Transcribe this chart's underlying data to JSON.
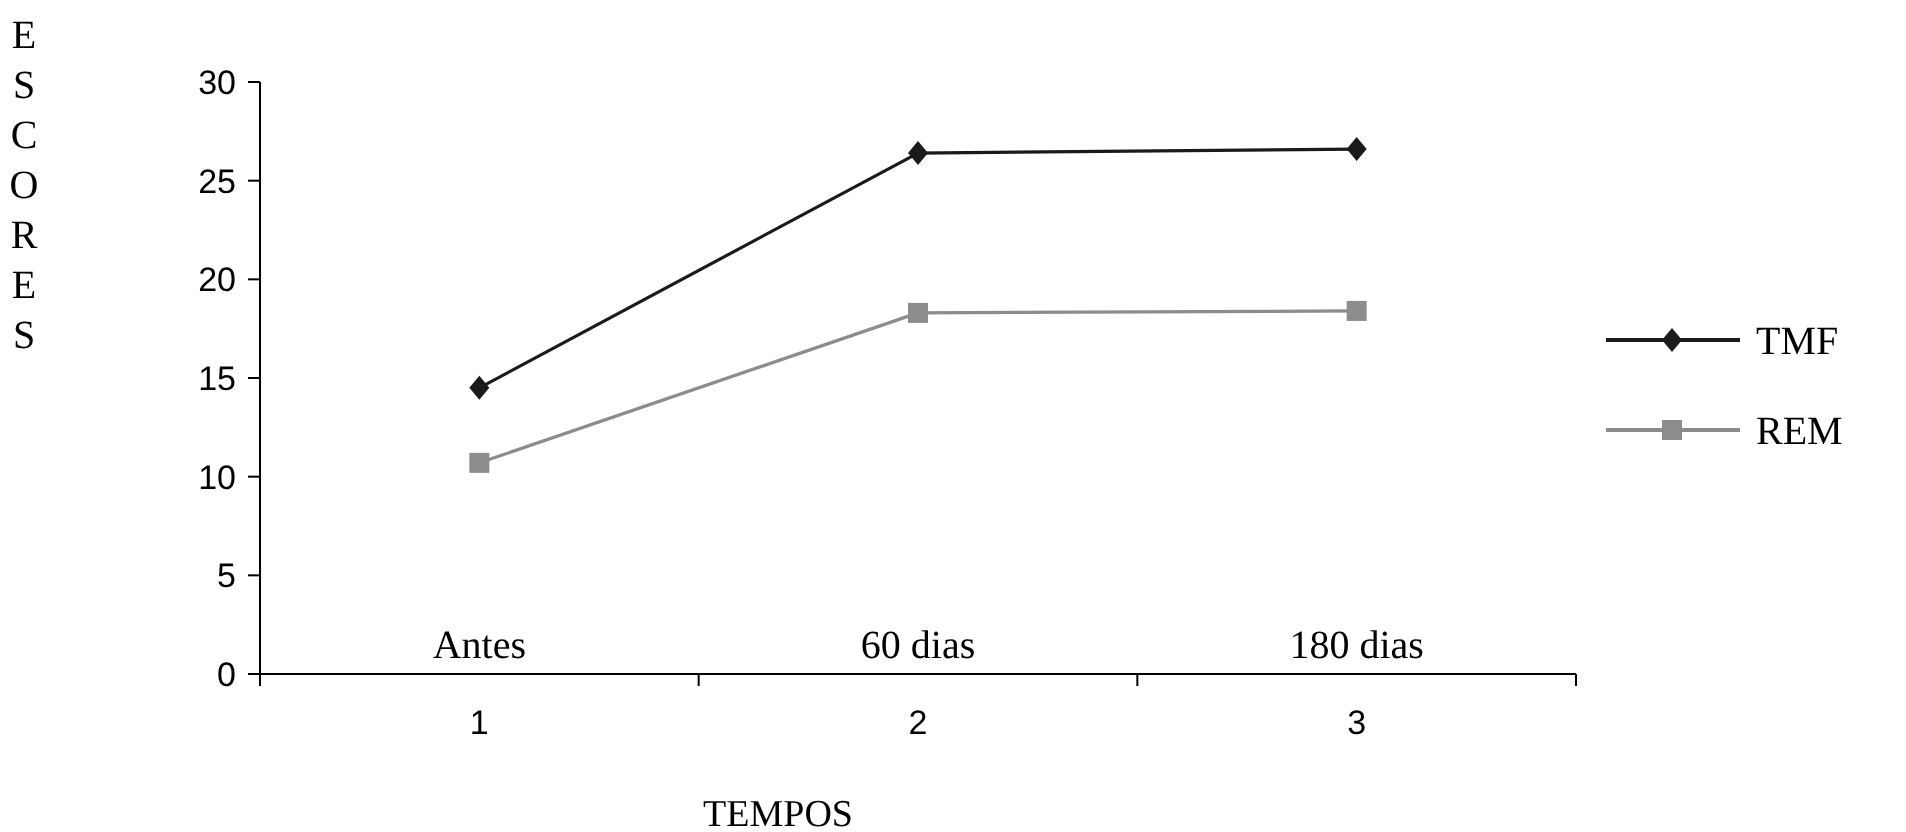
{
  "chart_data": {
    "type": "line",
    "xlabel": "TEMPOS",
    "ylabel": "ESCORES",
    "categories": [
      "1",
      "2",
      "3"
    ],
    "ylim": [
      0,
      30
    ],
    "yticks": [
      0,
      5,
      10,
      15,
      20,
      25,
      30
    ],
    "grid": false,
    "legend": "right",
    "series": [
      {
        "name": "TMF",
        "color": "#1a1a1a",
        "marker": "diamond",
        "values": [
          14.5,
          26.4,
          26.6
        ]
      },
      {
        "name": "REM",
        "color": "#8c8c8c",
        "marker": "square",
        "values": [
          10.7,
          18.3,
          18.4
        ]
      }
    ],
    "annotations": [
      "Antes",
      "60 dias",
      "180 dias"
    ]
  }
}
